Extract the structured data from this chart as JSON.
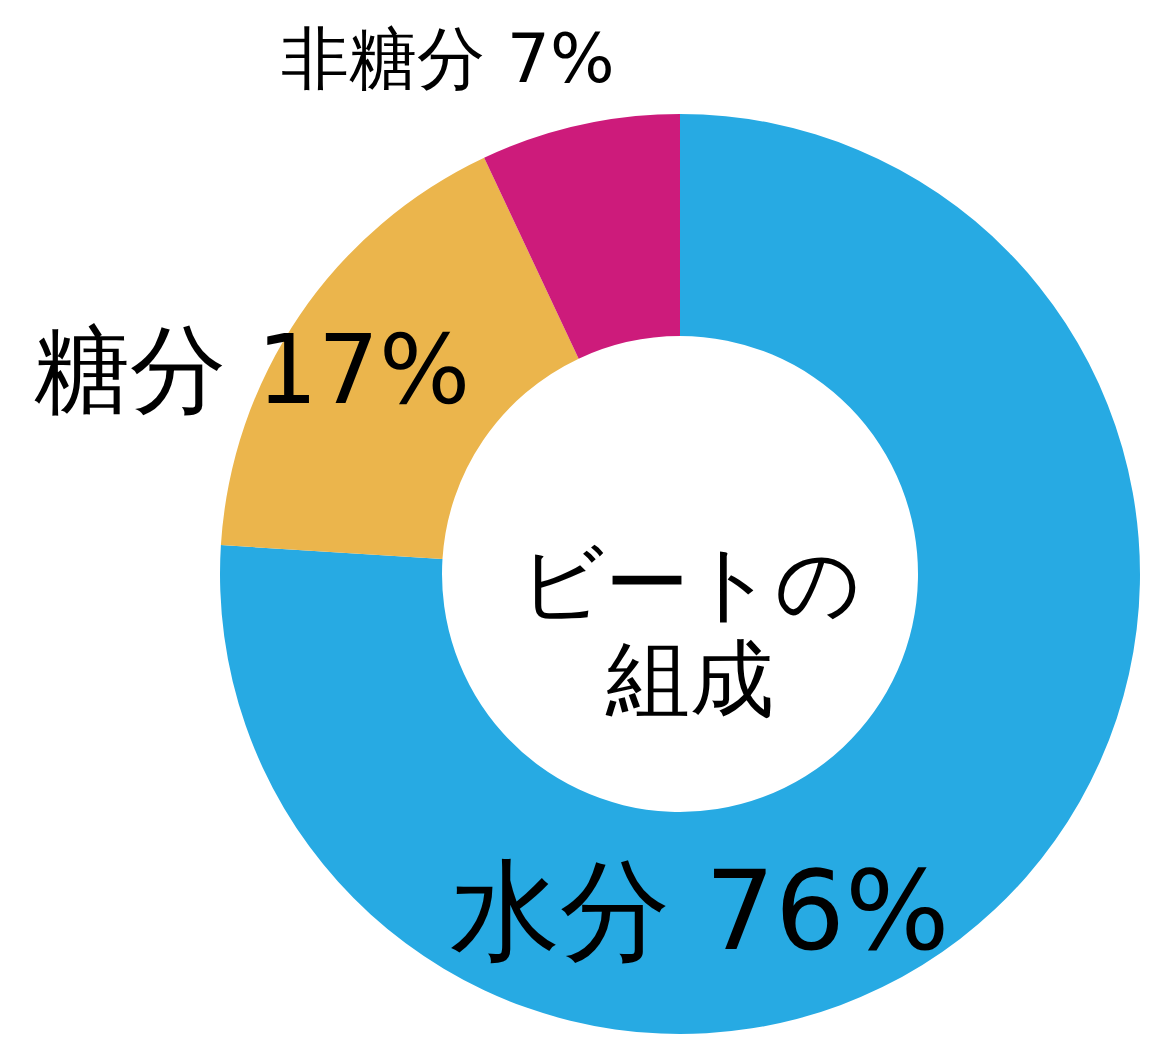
{
  "chart_data": {
    "type": "donut",
    "title": "ビートの組成",
    "categories": [
      "水分",
      "糖分",
      "非糖分"
    ],
    "values": [
      76,
      17,
      7
    ],
    "colors": [
      "#27aae3",
      "#ebb54c",
      "#cd1b7b"
    ],
    "value_labels": [
      "76%",
      "17%",
      "7%"
    ]
  }
}
